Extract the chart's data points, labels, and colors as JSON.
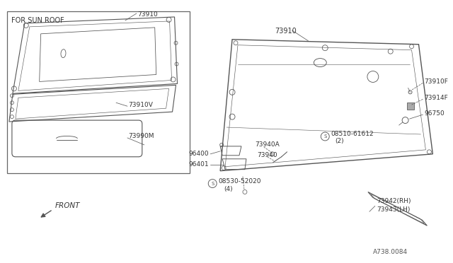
{
  "bg_color": "#ffffff",
  "line_color": "#555555",
  "text_color": "#333333",
  "diagram_title": "FOR SUN ROOF",
  "front_label": "FRONT",
  "ref_number": "A738.0084",
  "parts_left": {
    "p73910": "73910",
    "p73910V": "73910V",
    "p73990M": "73990M"
  },
  "parts_right": {
    "p73910": "73910",
    "p73910F": "73910F",
    "p73914F": "73914F",
    "p96750": "96750",
    "p08510": "©08510-61612\n(2)",
    "p73940A": "73940A",
    "p73940": "73940",
    "p73942": "73942(RH)\n73943(LH)"
  },
  "parts_bottom": {
    "p96400": "96400",
    "p96401": "96401",
    "p08530": "©08530-52020\n(4)"
  }
}
